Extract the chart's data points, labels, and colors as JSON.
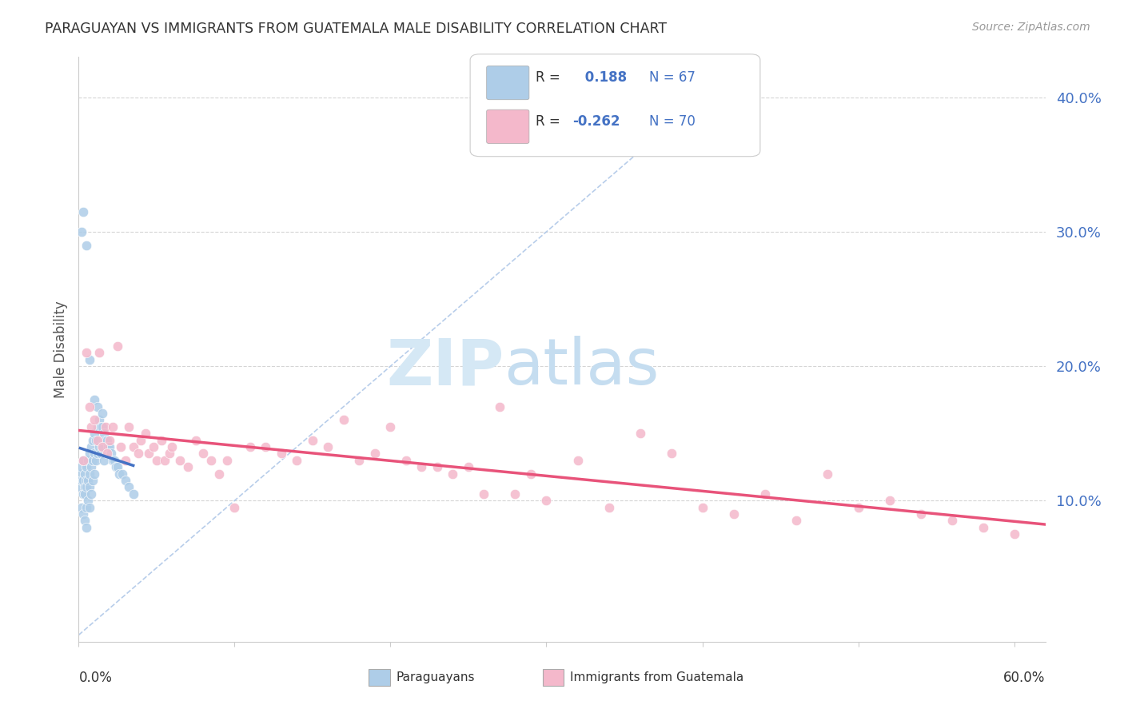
{
  "title": "PARAGUAYAN VS IMMIGRANTS FROM GUATEMALA MALE DISABILITY CORRELATION CHART",
  "source": "Source: ZipAtlas.com",
  "ylabel": "Male Disability",
  "group1_label": "Paraguayans",
  "group1_R": " 0.188",
  "group1_N": "67",
  "group1_color": "#aecde8",
  "group1_edge_color": "white",
  "group1_trend_color": "#4472c4",
  "group2_label": "Immigrants from Guatemala",
  "group2_R": "-0.262",
  "group2_N": "70",
  "group2_color": "#f4b8cb",
  "group2_edge_color": "white",
  "group2_trend_color": "#e8537a",
  "legend_R_color": "#4472c4",
  "legend_N_color": "#4472c4",
  "background_color": "#ffffff",
  "grid_color": "#d5d5d5",
  "diagonal_color": "#b0c8e8",
  "watermark_zip_color": "#d5e8f5",
  "watermark_atlas_color": "#c5ddf0",
  "xlim": [
    0.0,
    0.62
  ],
  "ylim": [
    -0.005,
    0.43
  ],
  "yticks": [
    0.1,
    0.2,
    0.3,
    0.4
  ],
  "ytick_labels": [
    "10.0%",
    "20.0%",
    "30.0%",
    "40.0%"
  ],
  "xtick_labels_shown": [
    "0.0%",
    "60.0%"
  ],
  "scatter_size": 80,
  "group1_x": [
    0.001,
    0.001,
    0.002,
    0.002,
    0.002,
    0.003,
    0.003,
    0.003,
    0.003,
    0.004,
    0.004,
    0.004,
    0.004,
    0.005,
    0.005,
    0.005,
    0.005,
    0.005,
    0.006,
    0.006,
    0.006,
    0.007,
    0.007,
    0.007,
    0.007,
    0.008,
    0.008,
    0.008,
    0.009,
    0.009,
    0.009,
    0.01,
    0.01,
    0.01,
    0.011,
    0.011,
    0.012,
    0.012,
    0.013,
    0.013,
    0.014,
    0.014,
    0.015,
    0.015,
    0.016,
    0.016,
    0.017,
    0.018,
    0.019,
    0.02,
    0.021,
    0.022,
    0.023,
    0.024,
    0.025,
    0.026,
    0.028,
    0.03,
    0.032,
    0.035,
    0.002,
    0.003,
    0.005,
    0.007,
    0.01,
    0.012,
    0.015
  ],
  "group1_y": [
    0.12,
    0.11,
    0.125,
    0.115,
    0.095,
    0.13,
    0.115,
    0.105,
    0.09,
    0.12,
    0.11,
    0.105,
    0.085,
    0.125,
    0.115,
    0.11,
    0.095,
    0.08,
    0.13,
    0.115,
    0.1,
    0.135,
    0.12,
    0.11,
    0.095,
    0.14,
    0.125,
    0.105,
    0.145,
    0.13,
    0.115,
    0.15,
    0.135,
    0.12,
    0.145,
    0.13,
    0.155,
    0.135,
    0.16,
    0.14,
    0.155,
    0.135,
    0.155,
    0.14,
    0.15,
    0.13,
    0.145,
    0.145,
    0.14,
    0.14,
    0.135,
    0.13,
    0.13,
    0.125,
    0.125,
    0.12,
    0.12,
    0.115,
    0.11,
    0.105,
    0.3,
    0.315,
    0.29,
    0.205,
    0.175,
    0.17,
    0.165
  ],
  "group2_x": [
    0.003,
    0.005,
    0.007,
    0.008,
    0.01,
    0.012,
    0.013,
    0.015,
    0.017,
    0.018,
    0.02,
    0.022,
    0.025,
    0.027,
    0.03,
    0.032,
    0.035,
    0.038,
    0.04,
    0.043,
    0.045,
    0.048,
    0.05,
    0.053,
    0.055,
    0.058,
    0.06,
    0.065,
    0.07,
    0.075,
    0.08,
    0.085,
    0.09,
    0.095,
    0.1,
    0.11,
    0.12,
    0.13,
    0.14,
    0.15,
    0.16,
    0.17,
    0.18,
    0.19,
    0.2,
    0.21,
    0.22,
    0.23,
    0.24,
    0.25,
    0.26,
    0.27,
    0.28,
    0.29,
    0.3,
    0.32,
    0.34,
    0.36,
    0.38,
    0.4,
    0.42,
    0.44,
    0.46,
    0.48,
    0.5,
    0.52,
    0.54,
    0.56,
    0.58,
    0.6
  ],
  "group2_y": [
    0.13,
    0.21,
    0.17,
    0.155,
    0.16,
    0.145,
    0.21,
    0.14,
    0.155,
    0.135,
    0.145,
    0.155,
    0.215,
    0.14,
    0.13,
    0.155,
    0.14,
    0.135,
    0.145,
    0.15,
    0.135,
    0.14,
    0.13,
    0.145,
    0.13,
    0.135,
    0.14,
    0.13,
    0.125,
    0.145,
    0.135,
    0.13,
    0.12,
    0.13,
    0.095,
    0.14,
    0.14,
    0.135,
    0.13,
    0.145,
    0.14,
    0.16,
    0.13,
    0.135,
    0.155,
    0.13,
    0.125,
    0.125,
    0.12,
    0.125,
    0.105,
    0.17,
    0.105,
    0.12,
    0.1,
    0.13,
    0.095,
    0.15,
    0.135,
    0.095,
    0.09,
    0.105,
    0.085,
    0.12,
    0.095,
    0.1,
    0.09,
    0.085,
    0.08,
    0.075
  ]
}
